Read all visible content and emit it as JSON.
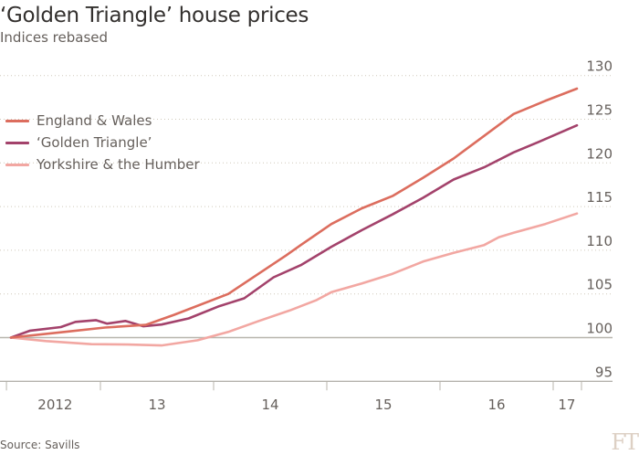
{
  "chart_data": {
    "type": "line",
    "title": "‘Golden Triangle’ house prices",
    "subtitle": "Indices rebased",
    "source": "Source: Savills",
    "logo": "FT",
    "xlabel": "",
    "ylabel": "",
    "ylim": [
      95,
      130
    ],
    "xlim": [
      2012.17,
      2017.46
    ],
    "y_ticks": [
      95,
      100,
      105,
      110,
      115,
      120,
      125,
      130
    ],
    "x_ticks": [
      2012.17,
      2013,
      2014,
      2015,
      2016,
      2017,
      2017.25
    ],
    "x_tick_labels": [
      {
        "label": "2012",
        "at": 2012.6
      },
      {
        "label": "13",
        "at": 2013.5
      },
      {
        "label": "14",
        "at": 2014.5
      },
      {
        "label": "15",
        "at": 2015.5
      },
      {
        "label": "16",
        "at": 2016.5
      },
      {
        "label": "17",
        "at": 2017.12
      }
    ],
    "grid": true,
    "legend_position": "top-left",
    "series": [
      {
        "name": "England & Wales",
        "color": "#dc6d5e",
        "points": [
          [
            2012.21,
            100
          ],
          [
            2012.68,
            100.65
          ],
          [
            2013.04,
            101.15
          ],
          [
            2013.4,
            101.45
          ],
          [
            2013.65,
            102.6
          ],
          [
            2014.13,
            105.0
          ],
          [
            2014.64,
            109.4
          ],
          [
            2014.77,
            110.6
          ],
          [
            2015.04,
            113.0
          ],
          [
            2015.31,
            114.8
          ],
          [
            2015.58,
            116.2
          ],
          [
            2015.85,
            118.3
          ],
          [
            2016.12,
            120.5
          ],
          [
            2016.39,
            123.1
          ],
          [
            2016.65,
            125.6
          ],
          [
            2016.93,
            127.1
          ],
          [
            2017.21,
            128.5
          ]
        ]
      },
      {
        "name": "‘Golden Triangle’",
        "color": "#a3426b",
        "points": [
          [
            2012.21,
            100
          ],
          [
            2012.38,
            100.8
          ],
          [
            2012.65,
            101.2
          ],
          [
            2012.78,
            101.8
          ],
          [
            2012.96,
            102.0
          ],
          [
            2013.06,
            101.6
          ],
          [
            2013.22,
            101.9
          ],
          [
            2013.38,
            101.3
          ],
          [
            2013.54,
            101.5
          ],
          [
            2013.78,
            102.2
          ],
          [
            2014.05,
            103.6
          ],
          [
            2014.27,
            104.5
          ],
          [
            2014.53,
            106.9
          ],
          [
            2014.77,
            108.3
          ],
          [
            2015.04,
            110.4
          ],
          [
            2015.31,
            112.3
          ],
          [
            2015.58,
            114.1
          ],
          [
            2015.85,
            116.0
          ],
          [
            2016.12,
            118.1
          ],
          [
            2016.39,
            119.5
          ],
          [
            2016.65,
            121.2
          ],
          [
            2016.87,
            122.4
          ],
          [
            2017.21,
            124.3
          ]
        ]
      },
      {
        "name": "Yorkshire & the Humber",
        "color": "#f2a7a2",
        "points": [
          [
            2012.21,
            100
          ],
          [
            2012.52,
            99.6
          ],
          [
            2012.92,
            99.25
          ],
          [
            2013.24,
            99.2
          ],
          [
            2013.54,
            99.1
          ],
          [
            2013.86,
            99.7
          ],
          [
            2014.13,
            100.65
          ],
          [
            2014.4,
            101.9
          ],
          [
            2014.67,
            103.1
          ],
          [
            2014.91,
            104.3
          ],
          [
            2015.04,
            105.2
          ],
          [
            2015.31,
            106.2
          ],
          [
            2015.58,
            107.3
          ],
          [
            2015.85,
            108.7
          ],
          [
            2016.12,
            109.7
          ],
          [
            2016.39,
            110.6
          ],
          [
            2016.52,
            111.5
          ],
          [
            2016.65,
            112.0
          ],
          [
            2016.93,
            113.0
          ],
          [
            2017.21,
            114.2
          ]
        ]
      }
    ]
  }
}
